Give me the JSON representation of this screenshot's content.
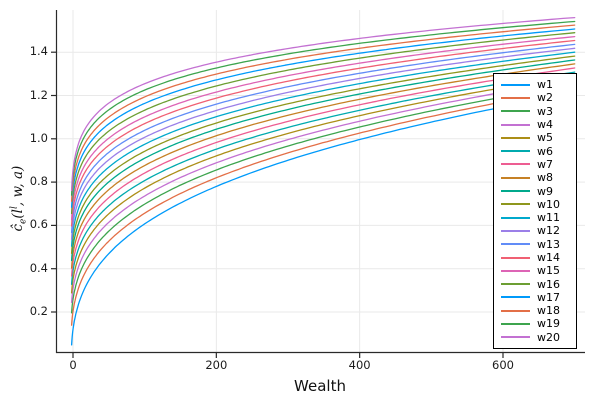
{
  "chart_data": {
    "type": "line",
    "title": "",
    "xlabel": "Wealth",
    "ylabel": "ĉₑ(lˡ, w, a)",
    "ylabel_parts": {
      "c_hat": "ĉ",
      "c_sub": "e",
      "open": "(l",
      "l_sup": "l",
      "rest": ", w, a)"
    },
    "xlim": [
      -24,
      716
    ],
    "ylim": [
      0,
      1.6
    ],
    "grid": true,
    "legend_position": "right",
    "xticks": {
      "values": [
        0,
        200,
        400,
        600
      ],
      "labels": [
        "0",
        "200",
        "400",
        "600"
      ]
    },
    "yticks": {
      "values": [
        0.2,
        0.4,
        0.6,
        0.8,
        1.0,
        1.2,
        1.4
      ],
      "labels": [
        "0.2",
        "0.4",
        "0.6",
        "0.8",
        "1.0",
        "1.2",
        "1.4"
      ]
    },
    "x_anchors": [
      -2,
      200,
      700
    ],
    "anchor_note": "values read from plot at wealth = -2 (curve start), 200 and 700; curves are smooth concave increasing between anchors",
    "series": [
      {
        "name": "w1",
        "color": "#009AFA",
        "values": [
          0.048,
          0.78,
          1.21
        ]
      },
      {
        "name": "w2",
        "color": "#E36F47",
        "values": [
          0.139,
          0.82,
          1.231
        ]
      },
      {
        "name": "w3",
        "color": "#3DA44E",
        "values": [
          0.196,
          0.856,
          1.251
        ]
      },
      {
        "name": "w4",
        "color": "#C371D2",
        "values": [
          0.244,
          0.889,
          1.271
        ]
      },
      {
        "name": "w5",
        "color": "#AC8E17",
        "values": [
          0.288,
          0.921,
          1.29
        ]
      },
      {
        "name": "w6",
        "color": "#00AAAE",
        "values": [
          0.328,
          0.952,
          1.308
        ]
      },
      {
        "name": "w7",
        "color": "#ED5D92",
        "values": [
          0.366,
          0.983,
          1.327
        ]
      },
      {
        "name": "w8",
        "color": "#C68125",
        "values": [
          0.403,
          1.014,
          1.346
        ]
      },
      {
        "name": "w9",
        "color": "#00A98C",
        "values": [
          0.438,
          1.044,
          1.364
        ]
      },
      {
        "name": "w10",
        "color": "#8E971D",
        "values": [
          0.471,
          1.073,
          1.382
        ]
      },
      {
        "name": "w11",
        "color": "#00A9CC",
        "values": [
          0.504,
          1.102,
          1.4
        ]
      },
      {
        "name": "w12",
        "color": "#9B7FE8",
        "values": [
          0.536,
          1.131,
          1.418
        ]
      },
      {
        "name": "w13",
        "color": "#618CF7",
        "values": [
          0.567,
          1.16,
          1.436
        ]
      },
      {
        "name": "w14",
        "color": "#F06073",
        "values": [
          0.597,
          1.188,
          1.454
        ]
      },
      {
        "name": "w15",
        "color": "#DD64B5",
        "values": [
          0.626,
          1.216,
          1.472
        ]
      },
      {
        "name": "w16",
        "color": "#6C9E32",
        "values": [
          0.655,
          1.244,
          1.49
        ]
      },
      {
        "name": "w17",
        "color": "#009AFA",
        "values": [
          0.684,
          1.272,
          1.507
        ]
      },
      {
        "name": "w18",
        "color": "#E36F47",
        "values": [
          0.712,
          1.299,
          1.525
        ]
      },
      {
        "name": "w19",
        "color": "#3DA44E",
        "values": [
          0.74,
          1.327,
          1.542
        ]
      },
      {
        "name": "w20",
        "color": "#C371D2",
        "values": [
          0.762,
          1.354,
          1.56
        ]
      }
    ]
  },
  "colors": {
    "background": "#FFFFFF",
    "grid": "#E9E9E9",
    "spine": "#2A2A2A",
    "tick_text": "#1C1C1C",
    "legend_border": "#000000"
  }
}
